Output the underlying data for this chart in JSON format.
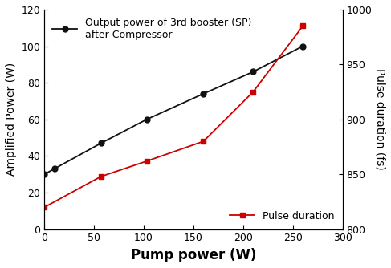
{
  "black_x": [
    0,
    10,
    57,
    103,
    160,
    210,
    260
  ],
  "black_y": [
    30,
    33,
    47,
    60,
    74,
    86,
    100
  ],
  "red_x": [
    0,
    57,
    103,
    160,
    210,
    260
  ],
  "red_y": [
    820,
    848,
    862,
    880,
    925,
    985
  ],
  "black_label": "Output power of 3rd booster (SP)\nafter Compressor",
  "red_label": "Pulse duration",
  "xlabel": "Pump power (W)",
  "ylabel_left": "Amplified Power (W)",
  "ylabel_right": "Pulse duration (fs)",
  "xlim": [
    0,
    300
  ],
  "ylim_left": [
    0,
    120
  ],
  "ylim_right": [
    800,
    1000
  ],
  "xticks": [
    0,
    50,
    100,
    150,
    200,
    250,
    300
  ],
  "yticks_left": [
    0,
    20,
    40,
    60,
    80,
    100,
    120
  ],
  "yticks_right": [
    800,
    850,
    900,
    950,
    1000
  ],
  "black_color": "#111111",
  "red_color": "#cc0000",
  "background_color": "#ffffff",
  "xlabel_fontsize": 12,
  "ylabel_fontsize": 10,
  "tick_fontsize": 9,
  "legend_fontsize": 9
}
